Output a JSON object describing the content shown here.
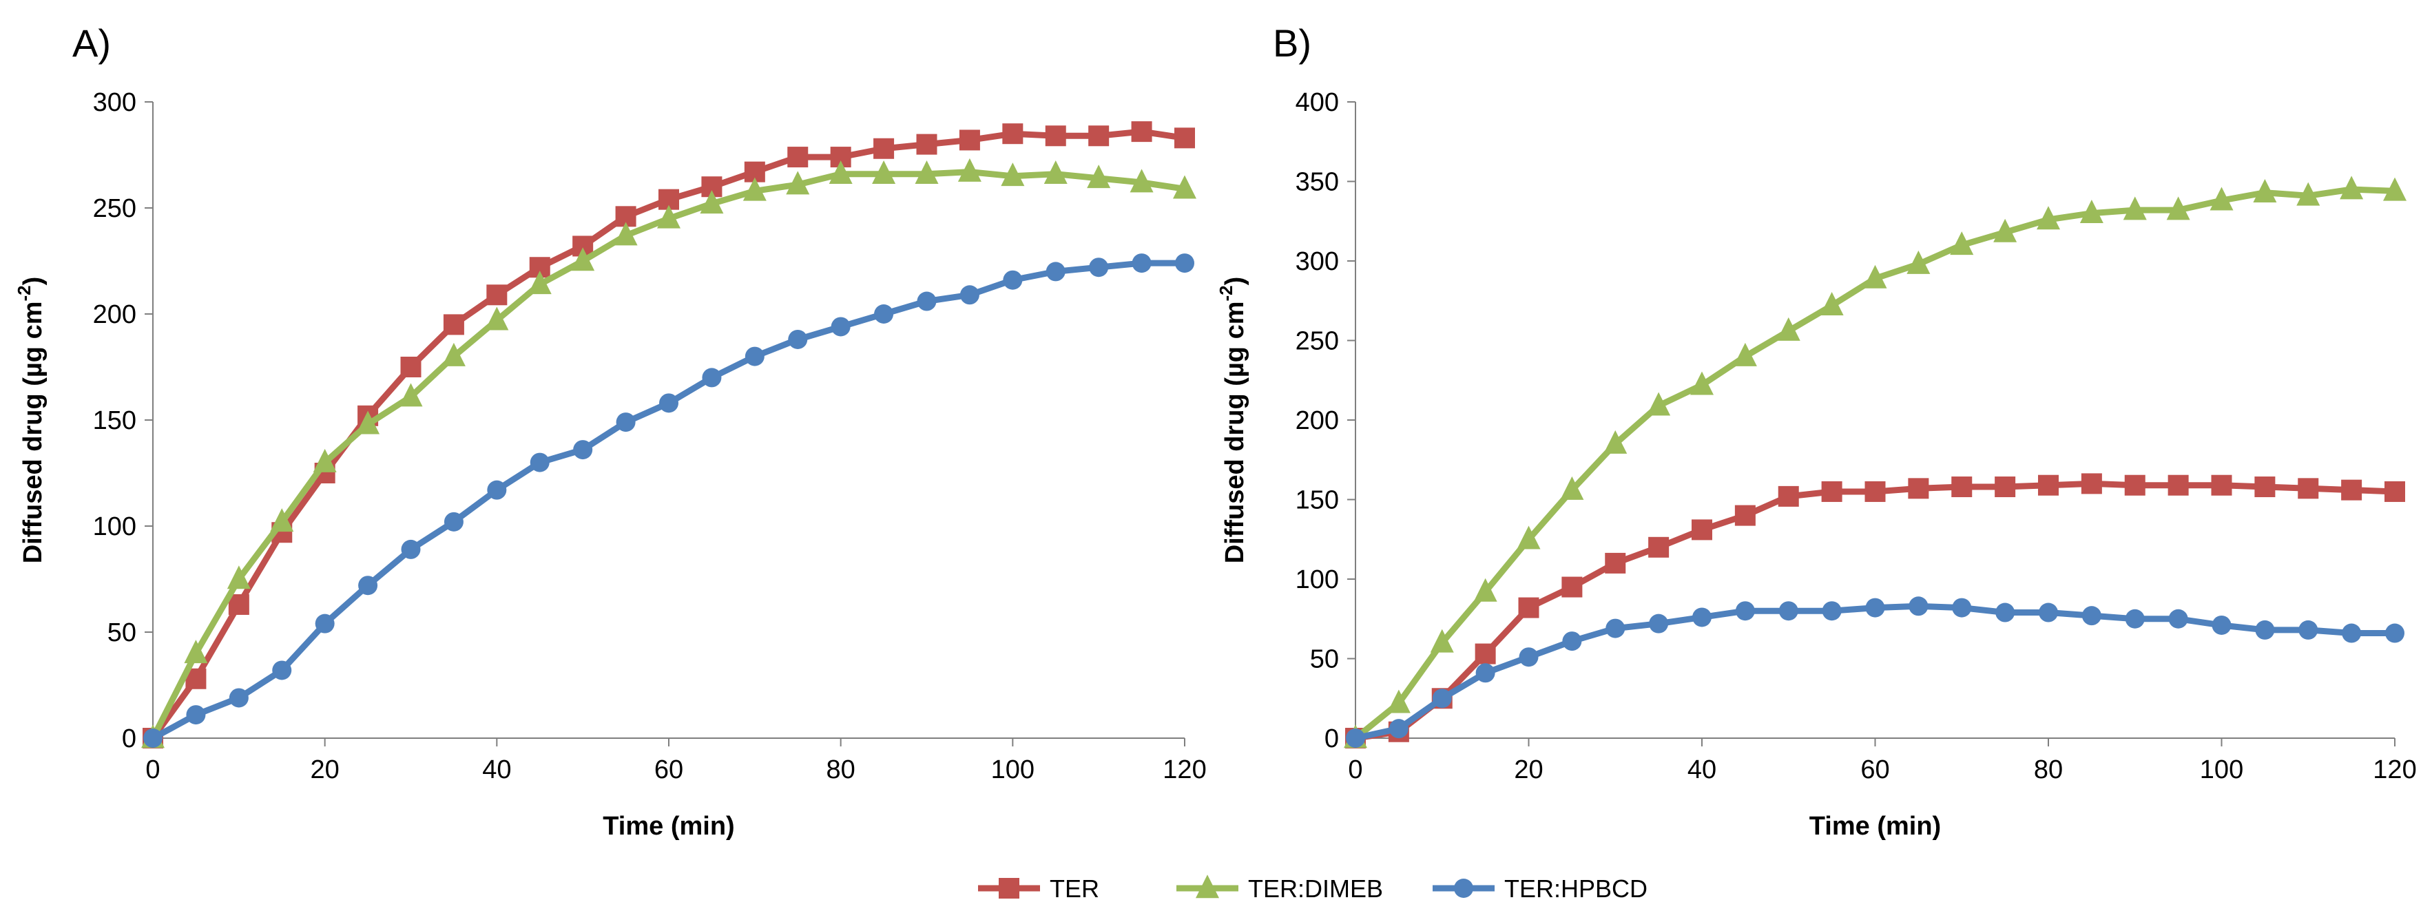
{
  "chart_data": [
    {
      "type": "line",
      "panel_label": "A)",
      "xlabel": "Time (min)",
      "ylabel_main": "Diffused drug (µg cm",
      "ylabel_sup": "-2",
      "ylabel_close": ")",
      "xlim": [
        0,
        120
      ],
      "ylim": [
        0,
        300
      ],
      "x_ticks": [
        "0",
        "20",
        "40",
        "60",
        "80",
        "100",
        "120"
      ],
      "y_ticks": [
        "0",
        "50",
        "100",
        "150",
        "200",
        "250",
        "300"
      ],
      "x": [
        0,
        5,
        10,
        15,
        20,
        25,
        30,
        35,
        40,
        45,
        50,
        55,
        60,
        65,
        70,
        75,
        80,
        85,
        90,
        95,
        100,
        105,
        110,
        115,
        120
      ],
      "series": [
        {
          "name": "TER",
          "values": [
            0,
            28,
            63,
            97,
            125,
            152,
            175,
            195,
            209,
            222,
            232,
            246,
            254,
            260,
            267,
            274,
            274,
            278,
            280,
            282,
            285,
            284,
            284,
            286,
            283
          ]
        },
        {
          "name": "TER:DIMEB",
          "values": [
            0,
            40,
            75,
            102,
            130,
            148,
            161,
            180,
            197,
            214,
            225,
            237,
            245,
            252,
            258,
            261,
            266,
            266,
            266,
            267,
            265,
            266,
            264,
            262,
            259
          ]
        },
        {
          "name": "TER:HPBCD",
          "values": [
            0,
            11,
            19,
            32,
            54,
            72,
            89,
            102,
            117,
            130,
            136,
            149,
            158,
            170,
            180,
            188,
            194,
            200,
            206,
            209,
            216,
            220,
            222,
            224,
            224
          ]
        }
      ]
    },
    {
      "type": "line",
      "panel_label": "B)",
      "xlabel": "Time (min)",
      "ylabel_main": "Diffused drug (µg cm",
      "ylabel_sup": "-2",
      "ylabel_close": ")",
      "xlim": [
        0,
        120
      ],
      "ylim": [
        0,
        400
      ],
      "x_ticks": [
        "0",
        "20",
        "40",
        "60",
        "80",
        "100",
        "120"
      ],
      "y_ticks": [
        "0",
        "50",
        "100",
        "150",
        "200",
        "250",
        "300",
        "350",
        "400"
      ],
      "x": [
        0,
        5,
        10,
        15,
        20,
        25,
        30,
        35,
        40,
        45,
        50,
        55,
        60,
        65,
        70,
        75,
        80,
        85,
        90,
        95,
        100,
        105,
        110,
        115,
        120
      ],
      "series": [
        {
          "name": "TER",
          "values": [
            0,
            4,
            25,
            53,
            82,
            95,
            110,
            120,
            131,
            140,
            152,
            155,
            155,
            157,
            158,
            158,
            159,
            160,
            159,
            159,
            159,
            158,
            157,
            156,
            155
          ]
        },
        {
          "name": "TER:DIMEB",
          "values": [
            0,
            22,
            60,
            92,
            125,
            156,
            185,
            209,
            222,
            240,
            256,
            272,
            289,
            298,
            310,
            318,
            326,
            330,
            332,
            332,
            338,
            343,
            341,
            345,
            344
          ]
        },
        {
          "name": "TER:HPBCD",
          "values": [
            0,
            6,
            25,
            41,
            51,
            61,
            69,
            72,
            76,
            80,
            80,
            80,
            82,
            83,
            82,
            79,
            79,
            77,
            75,
            75,
            71,
            68,
            68,
            66,
            66
          ]
        }
      ]
    }
  ],
  "legend": {
    "items": [
      {
        "label": "TER",
        "color": "#c0504d",
        "marker": "square"
      },
      {
        "label": "TER:DIMEB",
        "color": "#9bbb59",
        "marker": "triangle"
      },
      {
        "label": "TER:HPBCD",
        "color": "#4f81bd",
        "marker": "circle"
      }
    ]
  }
}
